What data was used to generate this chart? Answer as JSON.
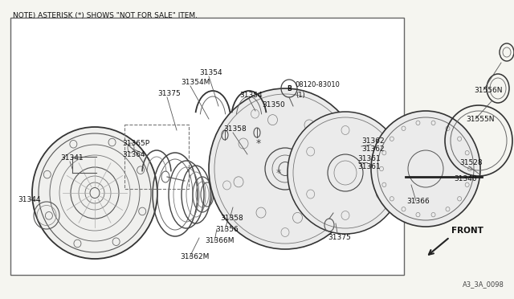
{
  "bg_color": "#f5f5f0",
  "note_text": "NOTE) ASTERISK (*) SHOWS \"NOT FOR SALE\" ITEM.",
  "diagram_code": "A3_3A_0098",
  "front_label": "FRONT",
  "tc": "#111111",
  "lc": "#444444"
}
